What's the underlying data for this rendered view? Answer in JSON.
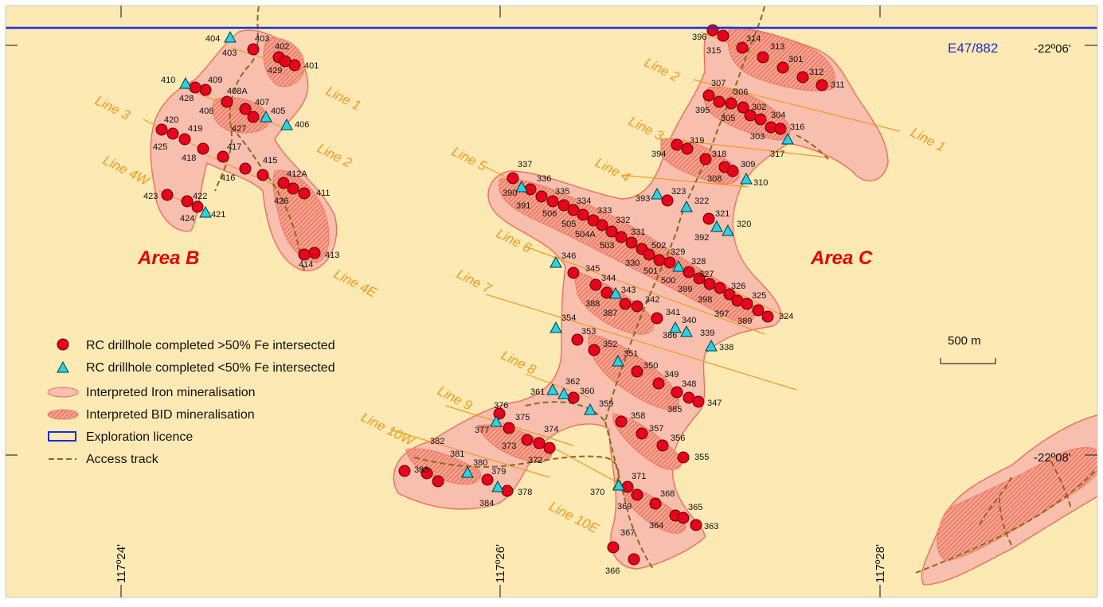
{
  "map": {
    "licence_label": "E47/882",
    "area_labels": [
      "Area B",
      "Area C"
    ],
    "coordinates": {
      "lat_top": "-22º06'",
      "lat_bottom": "-22º08'",
      "lon_left": "117º24'",
      "lon_mid": "117º26'",
      "lon_right": "117º28'"
    },
    "scale_bar": "500 m",
    "line_labels": [
      "Line 1",
      "Line 2",
      "Line 3",
      "Line 4W",
      "Line 4E",
      "Line 1",
      "Line 2",
      "Line 3",
      "Line 4",
      "Line 5",
      "Line 6",
      "Line 7",
      "Line 8",
      "Line 9",
      "Line 10W",
      "Line 10E"
    ],
    "legend": [
      {
        "symbol": "red-circle",
        "label": "RC drillhole completed >50% Fe intersected"
      },
      {
        "symbol": "cyan-triangle",
        "label": "RC drillhole completed <50% Fe intersected"
      },
      {
        "symbol": "pink-fill",
        "label": "Interpreted Iron mineralisation"
      },
      {
        "symbol": "hatched-fill",
        "label": "Interpreted BID mineralisation"
      },
      {
        "symbol": "blue-rect",
        "label": "Exploration licence"
      },
      {
        "symbol": "dashed-line",
        "label": "Access track"
      }
    ],
    "drillholes_red": [
      "403",
      "402",
      "401",
      "429",
      "409",
      "428",
      "408",
      "407",
      "427",
      "420",
      "419",
      "425",
      "418",
      "417",
      "416",
      "415",
      "412A",
      "411",
      "426",
      "423",
      "422",
      "424",
      "413",
      "414",
      "396",
      "315",
      "314",
      "313",
      "301",
      "312",
      "311",
      "307",
      "306",
      "395",
      "305",
      "302",
      "304",
      "303",
      "316",
      "394",
      "319",
      "318",
      "309",
      "308",
      "323",
      "393",
      "321",
      "392",
      "337",
      "390",
      "391",
      "336",
      "335",
      "506",
      "334",
      "505",
      "333",
      "504A",
      "332",
      "503",
      "331",
      "502",
      "330",
      "501",
      "329",
      "328",
      "500",
      "399",
      "327",
      "326",
      "398",
      "325",
      "397",
      "389",
      "324",
      "345",
      "344",
      "388",
      "343",
      "387",
      "342",
      "341",
      "353",
      "352",
      "350",
      "349",
      "348",
      "385",
      "347",
      "360",
      "358",
      "357",
      "356",
      "355",
      "376",
      "375",
      "373",
      "374",
      "372",
      "382",
      "381",
      "383",
      "379",
      "378",
      "371",
      "369",
      "368",
      "365",
      "364",
      "363",
      "367",
      "366"
    ],
    "drillholes_cyan": [
      "404",
      "410",
      "405",
      "406",
      "421",
      "317",
      "310",
      "322",
      "320",
      "346",
      "354",
      "340",
      "386",
      "339",
      "338",
      "351",
      "362",
      "361",
      "359",
      "377",
      "380",
      "384",
      "370"
    ],
    "colors": {
      "iron": "#f8bfaf",
      "hatch": "#e9553a",
      "red": "#e8001c",
      "cyan": "#29d3e4",
      "background": "#fde9b3",
      "licence": "#1c2fd8",
      "track": "#8a6a1c",
      "lines": "#f29a1e"
    }
  }
}
